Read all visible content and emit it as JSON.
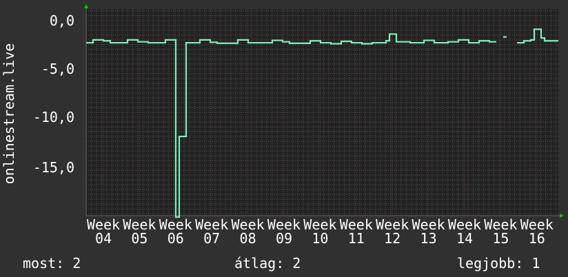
{
  "chart_data": {
    "type": "line",
    "ylabel": "onlinestream.live",
    "ylim": [
      -20.2,
      1.2
    ],
    "yticks": [
      "0,0",
      "-5,0",
      "-10,0",
      "-15,0"
    ],
    "ytick_values": [
      0,
      -5,
      -10,
      -15
    ],
    "xtick_labels": [
      "Week 04",
      "Week 05",
      "Week 06",
      "Week 07",
      "Week 08",
      "Week 09",
      "Week 10",
      "Week 11",
      "Week 12",
      "Week 13",
      "Week 14",
      "Week 15",
      "Week 16"
    ],
    "grid": true,
    "line_color": "#80f0b8",
    "values": [
      -2.3,
      -2.3,
      -2.0,
      -2.0,
      -2.0,
      -2.1,
      -2.1,
      -2.3,
      -2.3,
      -2.3,
      -2.3,
      -2.3,
      -2.0,
      -2.0,
      -2.0,
      -2.2,
      -2.2,
      -2.2,
      -2.3,
      -2.3,
      -2.3,
      -2.3,
      -2.3,
      -2.0,
      -2.0,
      -2.0,
      -21,
      -12,
      -12,
      -2.3,
      -2.3,
      -2.3,
      -2.3,
      -2.0,
      -2.0,
      -2.0,
      -2.25,
      -2.25,
      -2.35,
      -2.35,
      -2.35,
      -2.35,
      -2.35,
      -2.35,
      -2.0,
      -2.0,
      -2.0,
      -2.3,
      -2.3,
      -2.3,
      -2.3,
      -2.3,
      -2.3,
      -2.3,
      -2.05,
      -2.05,
      -2.05,
      -2.2,
      -2.2,
      -2.35,
      -2.35,
      -2.35,
      -2.35,
      -2.35,
      -2.35,
      -2.1,
      -2.1,
      -2.1,
      -2.3,
      -2.3,
      -2.3,
      -2.4,
      -2.4,
      -2.4,
      -2.15,
      -2.15,
      -2.15,
      -2.3,
      -2.3,
      -2.3,
      -2.4,
      -2.4,
      -2.4,
      -2.3,
      -2.3,
      -2.3,
      -2.3,
      -2.1,
      -1.4,
      -1.4,
      -2.2,
      -2.2,
      -2.2,
      -2.2,
      -2.3,
      -2.3,
      -2.3,
      -2.3,
      -2.05,
      -2.05,
      -2.05,
      -2.3,
      -2.3,
      -2.3,
      -2.3,
      -2.2,
      -2.2,
      -2.2,
      -2.0,
      -2.0,
      -2.0,
      -2.3,
      -2.3,
      -2.3,
      -2.1,
      -2.1,
      -2.1,
      -2.2,
      -2.2,
      null,
      null,
      -1.7,
      null,
      null,
      null,
      -2.3,
      -2.3,
      -2.1,
      -2.1,
      -2.0,
      -0.9,
      -0.9,
      -1.8,
      -2.1,
      -2.1,
      -2.1,
      -2.1
    ]
  },
  "legend": {
    "current": "most: 2",
    "average": "átlag: 2",
    "best": "legjobb: 1"
  }
}
